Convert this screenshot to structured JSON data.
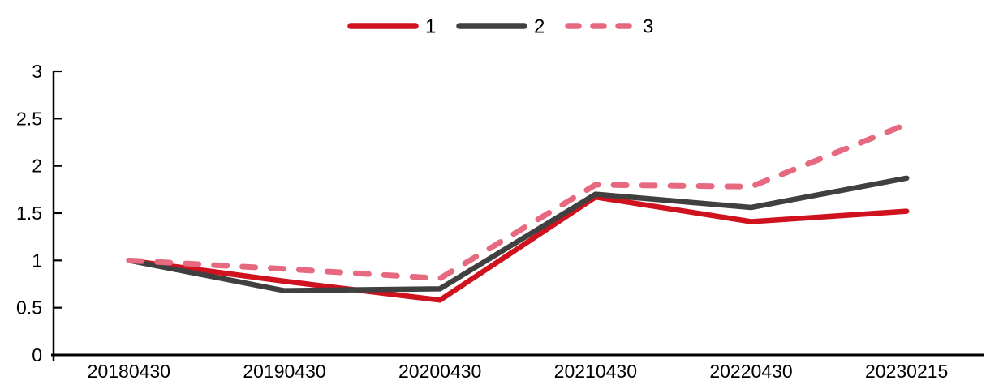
{
  "page": {
    "background": "#ffffff",
    "axis_color": "#000000",
    "text_color": "#000000"
  },
  "legend": {
    "position": "top-center",
    "items": [
      {
        "label": "1",
        "color": "#d0121f",
        "dash": false
      },
      {
        "label": "2",
        "color": "#404040",
        "dash": false
      },
      {
        "label": "3",
        "color": "#e7697f",
        "dash": true
      }
    ]
  },
  "chart_data": {
    "type": "line",
    "title": "",
    "xlabel": "",
    "ylabel": "",
    "categories": [
      "20180430",
      "20190430",
      "20200430",
      "20210430",
      "20220430",
      "20230215"
    ],
    "series": [
      {
        "name": "1",
        "color": "#d0121f",
        "style": "solid",
        "values": [
          1.0,
          0.78,
          0.58,
          1.67,
          1.41,
          1.52
        ]
      },
      {
        "name": "2",
        "color": "#404040",
        "style": "solid",
        "values": [
          1.0,
          0.68,
          0.7,
          1.7,
          1.56,
          1.87
        ]
      },
      {
        "name": "3",
        "color": "#e7697f",
        "style": "dashed",
        "values": [
          1.0,
          0.91,
          0.81,
          1.8,
          1.78,
          2.44
        ]
      }
    ],
    "ylim": [
      0,
      3
    ],
    "ytick_step": 0.5,
    "yticks": [
      "0",
      "0.5",
      "1",
      "1.5",
      "2",
      "2.5",
      "3"
    ],
    "grid": false,
    "legend_position": "top-center"
  }
}
